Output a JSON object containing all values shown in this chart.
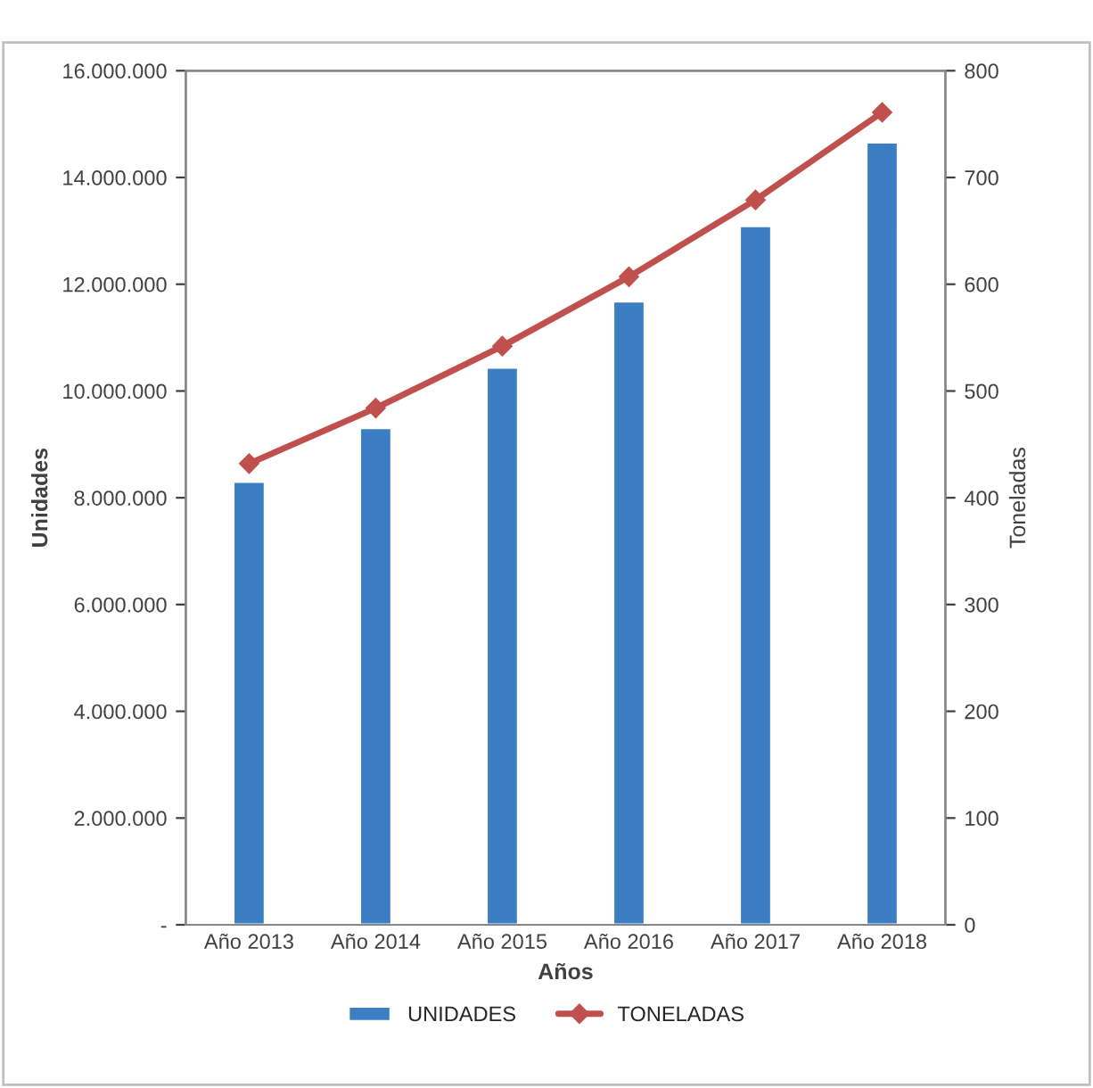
{
  "chart_data": {
    "type": "bar",
    "xlabel": "Años",
    "ylabel": "Unidades",
    "y2label": "Toneladas",
    "categories": [
      "Año 2013",
      "Año 2014",
      "Año 2015",
      "Año 2016",
      "Año 2017",
      "Año 2018"
    ],
    "series": [
      {
        "name": "UNIDADES",
        "color": "#3c7ec4",
        "values": [
          8300000,
          9310000,
          10440000,
          11680000,
          13090000,
          14660000
        ]
      },
      {
        "name": "TONELADAS",
        "type": "line",
        "axis": "y2",
        "color": "#c0504d",
        "marker": "diamond",
        "values": [
          432,
          484,
          542,
          607,
          679,
          761
        ]
      }
    ],
    "ylim": [
      0,
      16000000
    ],
    "yticks": [
      {
        "value": 0,
        "label": "-"
      },
      {
        "value": 2000000,
        "label": "2.000.000"
      },
      {
        "value": 4000000,
        "label": "4.000.000"
      },
      {
        "value": 6000000,
        "label": "6.000.000"
      },
      {
        "value": 8000000,
        "label": "8.000.000"
      },
      {
        "value": 10000000,
        "label": "10.000.000"
      },
      {
        "value": 12000000,
        "label": "12.000.000"
      },
      {
        "value": 14000000,
        "label": "14.000.000"
      },
      {
        "value": 16000000,
        "label": "16.000.000"
      }
    ],
    "y2lim": [
      0,
      800
    ],
    "y2ticks": [
      0,
      100,
      200,
      300,
      400,
      500,
      600,
      700,
      800
    ],
    "grid": false,
    "legend": "bottom"
  }
}
